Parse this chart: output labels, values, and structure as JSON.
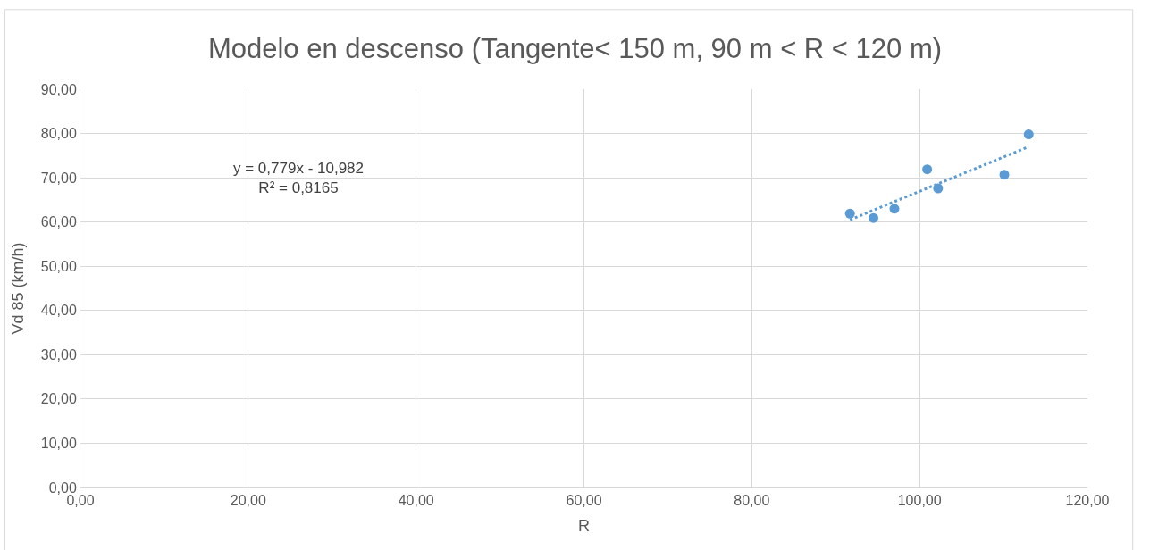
{
  "chart_data": {
    "type": "scatter",
    "title": "Modelo en descenso (Tangente< 150 m, 90 m < R < 120 m)",
    "xlabel": "R",
    "ylabel": "Vd 85 (km/h)",
    "series": [
      {
        "color": "#5b9bd5",
        "marker": "circle",
        "x": [
          91.7,
          94.5,
          97.0,
          100.9,
          102.2,
          110.1,
          113.0
        ],
        "values": [
          61.9,
          60.9,
          63.0,
          71.9,
          67.6,
          70.7,
          79.8
        ]
      },
      {
        "type": "line",
        "color": "#5b9bd5",
        "line_style": "dotted",
        "marker": "none",
        "x": [
          91.7,
          113.0
        ],
        "values": [
          60.5,
          77.0
        ]
      }
    ],
    "annotations": [
      "y = 0,779x - 10,982\nR² = 0,8165"
    ],
    "xlim": [
      0,
      120
    ],
    "xticks": [
      {
        "value": 0,
        "label": "0,00"
      },
      {
        "value": 20,
        "label": "20,00"
      },
      {
        "value": 40,
        "label": "40,00"
      },
      {
        "value": 60,
        "label": "60,00"
      },
      {
        "value": 80,
        "label": "80,00"
      },
      {
        "value": 100,
        "label": "100,00"
      },
      {
        "value": 120,
        "label": "120,00"
      }
    ],
    "ylim": [
      0,
      90
    ],
    "yticks": [
      {
        "value": 0,
        "label": "0,00"
      },
      {
        "value": 10,
        "label": "10,00"
      },
      {
        "value": 20,
        "label": "20,00"
      },
      {
        "value": 30,
        "label": "30,00"
      },
      {
        "value": 40,
        "label": "40,00"
      },
      {
        "value": 50,
        "label": "50,00"
      },
      {
        "value": 60,
        "label": "60,00"
      },
      {
        "value": 70,
        "label": "70,00"
      },
      {
        "value": 80,
        "label": "80,00"
      },
      {
        "value": 90,
        "label": "90,00"
      }
    ],
    "grid": true
  }
}
